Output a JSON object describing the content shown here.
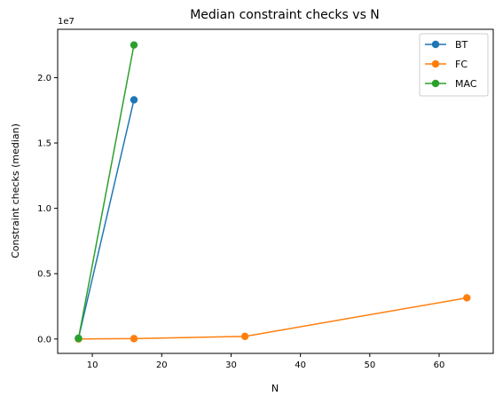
{
  "chart_data": {
    "type": "line",
    "title": "Median constraint checks vs N",
    "xlabel": "N",
    "ylabel": "Constraint checks (median)",
    "y_multiplier_label": "1e7",
    "xlim": [
      5,
      67.8
    ],
    "ylim": [
      -1100000,
      23700000
    ],
    "x_ticks": [
      10,
      20,
      30,
      40,
      50,
      60
    ],
    "x_tick_labels": [
      "10",
      "20",
      "30",
      "40",
      "50",
      "60"
    ],
    "y_ticks": [
      0,
      5000000,
      10000000,
      15000000,
      20000000
    ],
    "y_tick_labels": [
      "0.0",
      "0.5",
      "1.0",
      "1.5",
      "2.0"
    ],
    "legend_position": "top-right",
    "grid": false,
    "series": [
      {
        "name": "BT",
        "color": "#1f77b4",
        "x": [
          8,
          16
        ],
        "y": [
          60000,
          18300000
        ]
      },
      {
        "name": "FC",
        "color": "#ff7f0e",
        "x": [
          8,
          16,
          32,
          64
        ],
        "y": [
          5000,
          30000,
          200000,
          3150000
        ]
      },
      {
        "name": "MAC",
        "color": "#2ca02c",
        "x": [
          8,
          16
        ],
        "y": [
          40000,
          22500000
        ]
      }
    ]
  }
}
